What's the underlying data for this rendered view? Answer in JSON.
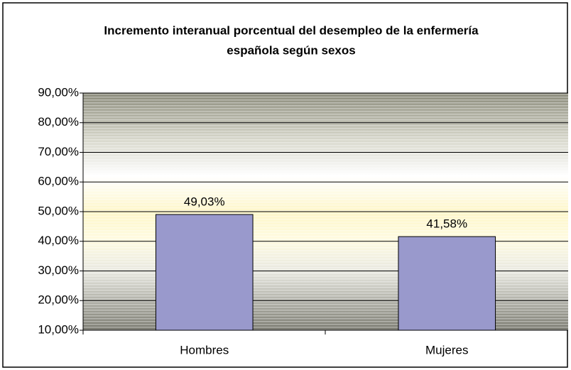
{
  "chart_data": {
    "type": "bar",
    "title": "Incremento interanual porcentual del desempleo de la enfermería española según sexos",
    "categories": [
      "Hombres",
      "Mujeres"
    ],
    "values": [
      49.03,
      41.58
    ],
    "value_labels": [
      "49,03%",
      "41,58%"
    ],
    "color": "#9999cc",
    "ylim": [
      10,
      90
    ],
    "yticks": [
      {
        "value": 10,
        "label": "10,00%"
      },
      {
        "value": 20,
        "label": "20,00%"
      },
      {
        "value": 30,
        "label": "30,00%"
      },
      {
        "value": 40,
        "label": "40,00%"
      },
      {
        "value": 50,
        "label": "50,00%"
      },
      {
        "value": 60,
        "label": "60,00%"
      },
      {
        "value": 70,
        "label": "70,00%"
      },
      {
        "value": 80,
        "label": "80,00%"
      },
      {
        "value": 90,
        "label": "90,00%"
      }
    ],
    "grid": true
  }
}
